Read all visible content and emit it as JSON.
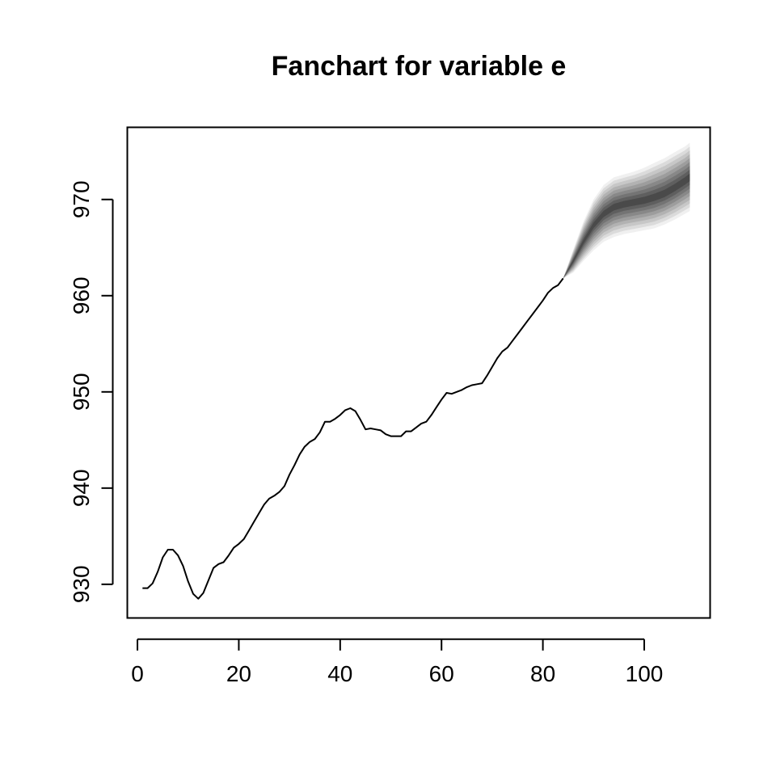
{
  "chart_data": {
    "type": "line",
    "title": "Fanchart for variable e",
    "xlabel": "",
    "ylabel": "",
    "xlim": [
      -2,
      113
    ],
    "ylim": [
      926.5,
      977.5
    ],
    "x_ticks": [
      0,
      20,
      40,
      60,
      80,
      100
    ],
    "y_ticks": [
      930,
      940,
      950,
      960,
      970
    ],
    "grid": false,
    "series": [
      {
        "x": [
          1,
          2,
          3,
          4,
          5,
          6,
          7,
          8,
          9,
          10,
          11,
          12,
          13,
          14,
          15,
          16,
          17,
          18,
          19,
          20,
          21,
          22,
          23,
          24,
          25,
          26,
          27,
          28,
          29,
          30,
          31,
          32,
          33,
          34,
          35,
          36,
          37,
          38,
          39,
          40,
          41,
          42,
          43,
          44,
          45,
          46,
          47,
          48,
          49,
          50,
          51,
          52,
          53,
          54,
          55,
          56,
          57,
          58,
          59,
          60,
          61,
          62,
          63,
          64,
          65,
          66,
          67,
          68,
          69,
          70,
          71,
          72,
          73,
          74,
          75,
          76,
          77,
          78,
          79,
          80,
          81,
          82,
          83,
          84
        ],
        "values": [
          929.6,
          929.6,
          930.1,
          931.3,
          932.8,
          933.6,
          933.6,
          933.0,
          931.9,
          930.3,
          929.0,
          928.5,
          929.1,
          930.4,
          931.7,
          932.1,
          932.3,
          933.0,
          933.8,
          934.2,
          934.7,
          935.6,
          936.5,
          937.4,
          938.3,
          938.9,
          939.2,
          939.6,
          940.2,
          941.4,
          942.4,
          943.5,
          944.3,
          944.8,
          945.1,
          945.8,
          946.9,
          946.9,
          947.2,
          947.6,
          948.1,
          948.3,
          948.0,
          947.1,
          946.1,
          946.2,
          946.1,
          946.0,
          945.6,
          945.4,
          945.4,
          945.4,
          945.9,
          945.9,
          946.3,
          946.7,
          946.9,
          947.6,
          948.4,
          949.2,
          949.9,
          949.8,
          950.0,
          950.2,
          950.5,
          950.7,
          950.8,
          950.9,
          951.7,
          952.6,
          953.5,
          954.2,
          954.6,
          955.3,
          956.0,
          956.7,
          957.4,
          958.1,
          958.8,
          959.5,
          960.3,
          960.8,
          961.1,
          961.8
        ]
      }
    ],
    "fan": {
      "x": [
        84,
        86,
        88,
        90,
        92,
        94,
        96,
        98,
        100,
        102,
        104,
        106,
        108,
        109
      ],
      "median": [
        961.8,
        963.6,
        965.6,
        967.3,
        968.5,
        969.2,
        969.5,
        969.7,
        969.9,
        970.2,
        970.6,
        971.2,
        971.9,
        972.3
      ],
      "outer_upper": [
        961.8,
        964.8,
        967.7,
        970.0,
        971.5,
        972.3,
        972.6,
        972.9,
        973.3,
        973.8,
        974.3,
        974.9,
        975.5,
        975.9
      ],
      "outer_lower": [
        961.8,
        962.4,
        963.6,
        964.7,
        965.6,
        966.1,
        966.4,
        966.6,
        966.8,
        967.0,
        967.4,
        967.9,
        968.5,
        968.8
      ],
      "band_levels": 9,
      "light_color": "#f0f0f0",
      "dark_color": "#4a4a4a"
    },
    "line_color": "#000000"
  }
}
